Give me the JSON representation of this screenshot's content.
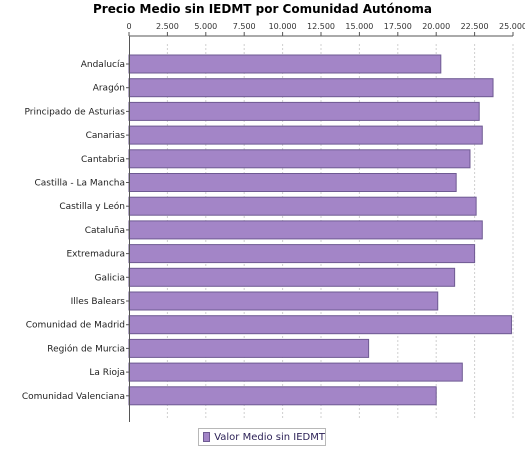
{
  "chart_data": {
    "type": "bar",
    "orientation": "horizontal",
    "title": "Precio Medio sin IEDMT por Comunidad Autónoma",
    "categories": [
      "Andalucía",
      "Aragón",
      "Principado de Asturias",
      "Canarias",
      "Cantabria",
      "Castilla - La Mancha",
      "Castilla y León",
      "Cataluña",
      "Extremadura",
      "Galicia",
      "Illes Balears",
      "Comunidad de Madrid",
      "Región de Murcia",
      "La Rioja",
      "Comunidad Valenciana"
    ],
    "series": [
      {
        "name": "Valor Medio sin IEDMT",
        "color": "#a385c7",
        "values": [
          20300,
          23700,
          22800,
          23000,
          22200,
          21300,
          22600,
          23000,
          22500,
          21200,
          20100,
          24900,
          15600,
          21700,
          20000
        ]
      }
    ],
    "xlim": [
      0,
      25000
    ],
    "xticks": [
      0,
      2500,
      5000,
      7500,
      10000,
      12500,
      15000,
      17500,
      20000,
      22500,
      25000
    ],
    "xtick_labels": [
      "0",
      "2.500",
      "5.000",
      "7.500",
      "10.000",
      "12.500",
      "15.000",
      "17.500",
      "20.000",
      "22.500",
      "25.000"
    ],
    "xaxis_position": "top",
    "grid": true,
    "legend_position": "bottom-center"
  }
}
